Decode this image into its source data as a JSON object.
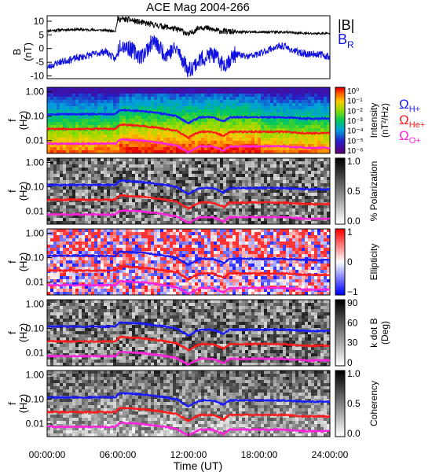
{
  "title": "ACE Mag 2004-266",
  "colors": {
    "total": "#000000",
    "radial": "#1010e0",
    "h_plus": "#1a1aff",
    "he_plus": "#ff1a1a",
    "o_plus": "#ff22dd"
  },
  "chart_data": [
    {
      "type": "line",
      "panel": "magnetic-field",
      "ylabel": "B\n(nT)",
      "ylim": [
        -11,
        12
      ],
      "yticks": [
        "10",
        "5",
        "0",
        "-5",
        "-10"
      ],
      "legend": [
        "|B|",
        "B_R"
      ],
      "legend_texts": {
        "b_total": "|B|",
        "b_r_main": "B",
        "b_r_sub": "R"
      },
      "series": [
        {
          "name": "|B|",
          "color": "#000000",
          "x": [
            0,
            2,
            4,
            5.8,
            6.0,
            7,
            8,
            10,
            11.5,
            12,
            13,
            14.5,
            16,
            18,
            20,
            22,
            24
          ],
          "y": [
            6.5,
            7.0,
            6.8,
            6.5,
            10.8,
            10.5,
            9.5,
            8.0,
            6.5,
            5.0,
            8.0,
            6.5,
            6.0,
            6.0,
            6.0,
            5.5,
            5.5
          ]
        },
        {
          "name": "B_R",
          "color": "#1010e0",
          "x": [
            0,
            1,
            2,
            3,
            4,
            5,
            5.8,
            6.2,
            7,
            8,
            9,
            10,
            11,
            12,
            13,
            14,
            15,
            16,
            17,
            18,
            19,
            20,
            21,
            22,
            23,
            24
          ],
          "y": [
            -7,
            -5,
            -4,
            -3,
            -2,
            -1,
            -4,
            2,
            0,
            -3,
            3,
            -2,
            0,
            -8,
            -4,
            -2,
            -6,
            -2,
            -3,
            -2,
            0,
            1,
            -1,
            -2,
            -2,
            -3
          ]
        }
      ]
    },
    {
      "type": "heatmap",
      "panel": "intensity",
      "ylabel": "f\n(Hz)",
      "colorbar_label": "Intensity\n(nT²/Hz)",
      "colorbar_ticks": [
        "10⁰",
        "10⁻¹",
        "10⁻²",
        "10⁻³",
        "10⁻⁴",
        "10⁻⁵",
        "10⁻⁶"
      ]
    },
    {
      "type": "heatmap",
      "panel": "polarization",
      "ylabel": "f\n(Hz)",
      "colorbar_label": "% Polarization",
      "colorbar_ticks": [
        "1.0",
        "0.5",
        "0.0"
      ]
    },
    {
      "type": "heatmap",
      "panel": "ellipticity",
      "ylabel": "f\n(Hz)",
      "colorbar_label": "Ellipticity",
      "colorbar_ticks": [
        "1",
        "0",
        "−1"
      ]
    },
    {
      "type": "heatmap",
      "panel": "k-dot-b",
      "ylabel": "f\n(Hz)",
      "colorbar_label": "k dot B\n(Deg)",
      "colorbar_ticks": [
        "90",
        "60",
        "30",
        "0"
      ]
    },
    {
      "type": "heatmap",
      "panel": "coherency",
      "ylabel": "f\n(Hz)",
      "colorbar_label": "Coherency",
      "colorbar_ticks": [
        "1.0",
        "0.5",
        "0.0"
      ]
    }
  ],
  "frequency_axis": {
    "yticks": [
      "1.00",
      "0.10",
      "0.01"
    ],
    "ylim": [
      0.003,
      1.5
    ],
    "scale": "log"
  },
  "gyrofrequency_lines": {
    "x": [
      0,
      2,
      4,
      5.8,
      6.2,
      8,
      10,
      11,
      11.5,
      12,
      12.5,
      13,
      14,
      15,
      15.5,
      16,
      18,
      20,
      22,
      24
    ],
    "h_plus": [
      0.12,
      0.12,
      0.12,
      0.12,
      0.18,
      0.16,
      0.12,
      0.1,
      0.07,
      0.05,
      0.07,
      0.09,
      0.09,
      0.06,
      0.09,
      0.09,
      0.09,
      0.09,
      0.08,
      0.08
    ],
    "he_plus": [
      0.03,
      0.03,
      0.03,
      0.03,
      0.045,
      0.04,
      0.03,
      0.025,
      0.018,
      0.013,
      0.018,
      0.023,
      0.023,
      0.015,
      0.023,
      0.023,
      0.023,
      0.023,
      0.02,
      0.02
    ],
    "o_plus": [
      0.0075,
      0.0075,
      0.0075,
      0.0075,
      0.011,
      0.01,
      0.0075,
      0.0062,
      0.0045,
      0.0033,
      0.0045,
      0.0058,
      0.0058,
      0.0038,
      0.0058,
      0.0058,
      0.0058,
      0.0058,
      0.005,
      0.005
    ]
  },
  "gyro_legend": {
    "omega": "Ω",
    "h_sub": "H+",
    "he_sub": "He+",
    "o_sub": "O+"
  },
  "x_axis": {
    "label": "Time (UT)",
    "xlim": [
      0,
      24
    ],
    "ticks": [
      {
        "v": 0,
        "label": "00:00:00"
      },
      {
        "v": 6,
        "label": "06:00:00"
      },
      {
        "v": 12,
        "label": "12:00:00"
      },
      {
        "v": 18,
        "label": "18:00:00"
      },
      {
        "v": 24,
        "label": "24:00:00"
      }
    ]
  }
}
